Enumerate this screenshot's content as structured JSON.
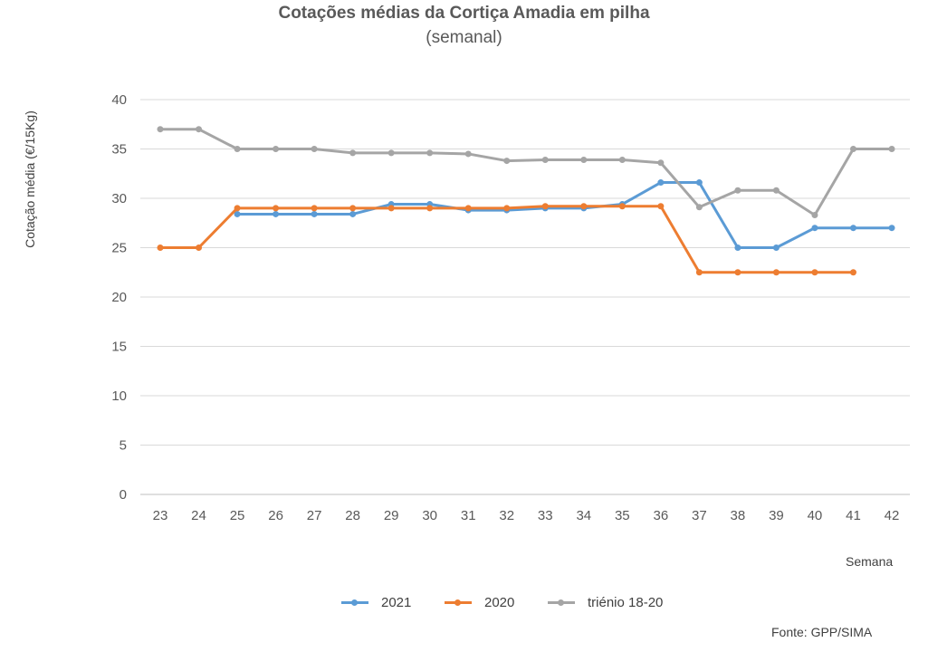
{
  "chart_data": {
    "type": "line",
    "title": "Cotações médias da Cortiça Amadia em pilha",
    "subtitle": "(semanal)",
    "ylabel": "Cotação média (€/15Kg)",
    "xlabel": "Semana",
    "ylim": [
      0,
      40
    ],
    "yticks": [
      0,
      5,
      10,
      15,
      20,
      25,
      30,
      35,
      40
    ],
    "categories": [
      "23",
      "24",
      "25",
      "26",
      "27",
      "28",
      "29",
      "30",
      "31",
      "32",
      "33",
      "34",
      "35",
      "36",
      "37",
      "38",
      "39",
      "40",
      "41",
      "42"
    ],
    "grid": true,
    "legend_position": "bottom",
    "series": [
      {
        "name": "2021",
        "color": "#5B9BD5",
        "values": [
          null,
          null,
          28.4,
          28.4,
          28.4,
          28.4,
          29.4,
          29.4,
          28.8,
          28.8,
          29.0,
          29.0,
          29.4,
          31.6,
          31.6,
          25.0,
          25.0,
          27.0,
          27.0,
          27.0
        ]
      },
      {
        "name": "2020",
        "color": "#ED7D31",
        "values": [
          25.0,
          25.0,
          29.0,
          29.0,
          29.0,
          29.0,
          29.0,
          29.0,
          29.0,
          29.0,
          29.2,
          29.2,
          29.2,
          29.2,
          22.5,
          22.5,
          22.5,
          22.5,
          22.5,
          null
        ]
      },
      {
        "name": "triénio 18-20",
        "color": "#A5A5A5",
        "values": [
          37.0,
          37.0,
          35.0,
          35.0,
          35.0,
          34.6,
          34.6,
          34.6,
          34.5,
          33.8,
          33.9,
          33.9,
          33.9,
          33.6,
          29.1,
          30.8,
          30.8,
          28.3,
          35.0,
          35.0
        ]
      }
    ]
  },
  "source": "Fonte: GPP/SIMA"
}
